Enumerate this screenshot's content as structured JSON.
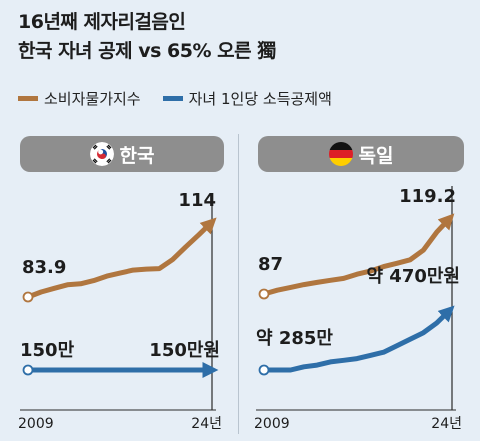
{
  "title_lines": [
    "16년째 제자리걸음인",
    "한국 자녀 공제 vs 65% 오른 獨"
  ],
  "colors": {
    "cpi": "#b0763f",
    "deduction": "#2e6ea8",
    "header_bg": "#8e8e8e",
    "background": "#e6eef6"
  },
  "legend": [
    {
      "label": "소비자물가지수",
      "series": "cpi"
    },
    {
      "label": "자녀 1인당 소득공제액",
      "series": "deduction"
    }
  ],
  "chart_data": [
    {
      "type": "line",
      "panel": "한국",
      "flag": "korea-flag-icon",
      "x_start_label": "2009",
      "x_end_label": "24년",
      "series": [
        {
          "name": "소비자물가지수",
          "key": "cpi",
          "values": [
            83.9,
            85.9,
            87.4,
            88.8,
            89.2,
            90.5,
            92.3,
            93.5,
            94.7,
            95.1,
            95.3,
            98.9,
            104.0,
            108.9,
            114.0
          ],
          "start_label": "83.9",
          "end_label": "114"
        },
        {
          "name": "자녀 1인당 소득공제액",
          "key": "deduction",
          "values": [
            150,
            150,
            150,
            150,
            150,
            150,
            150,
            150,
            150,
            150,
            150,
            150,
            150,
            150,
            150
          ],
          "start_label": "150만",
          "end_label": "150만원"
        }
      ]
    },
    {
      "type": "line",
      "panel": "독일",
      "flag": "germany-flag-icon",
      "x_start_label": "2009",
      "x_end_label": "24년",
      "series": [
        {
          "name": "소비자물가지수",
          "key": "cpi",
          "values": [
            87.0,
            88.6,
            89.8,
            91.0,
            91.9,
            92.8,
            93.6,
            95.4,
            96.7,
            98.6,
            100.0,
            101.5,
            105.6,
            113.2,
            119.2
          ],
          "start_label": "87",
          "end_label": "119.2"
        },
        {
          "name": "자녀 1인당 소득공제액",
          "key": "deduction",
          "values": [
            285,
            285,
            285,
            295,
            300,
            310,
            315,
            320,
            330,
            340,
            360,
            380,
            400,
            430,
            470
          ],
          "start_label": "약 285만",
          "end_label": "약 470만원"
        }
      ]
    }
  ]
}
